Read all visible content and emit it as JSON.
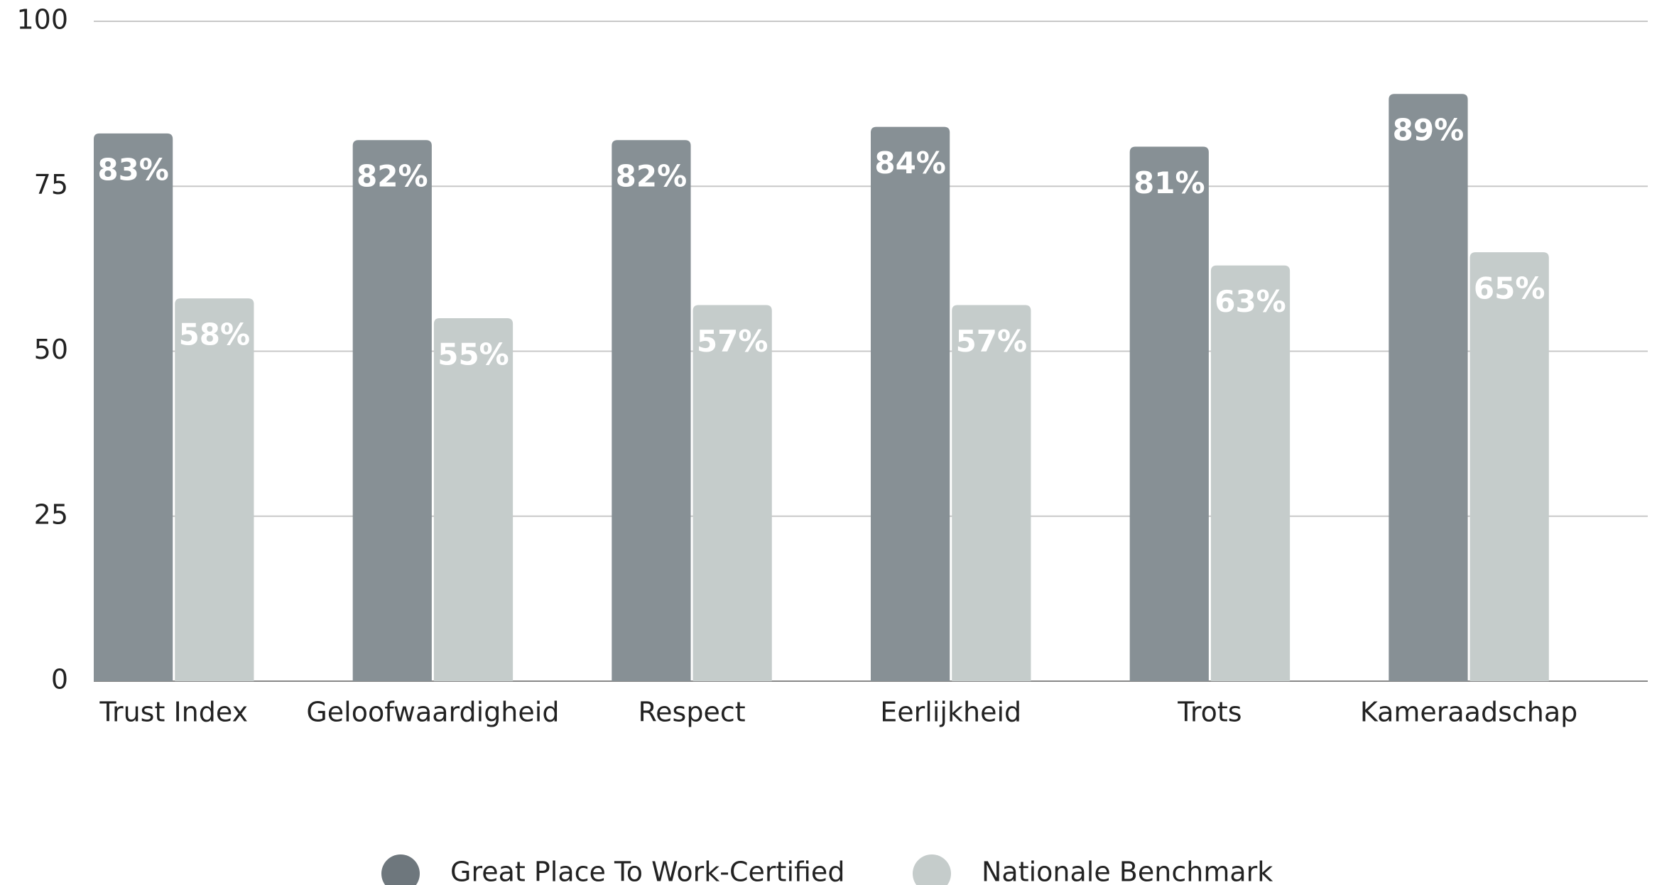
{
  "chart_data": {
    "type": "bar",
    "categories": [
      "Trust Index",
      "Geloofwaardigheid",
      "Respect",
      "Eerlijkheid",
      "Trots",
      "Kameraadschap"
    ],
    "series": [
      {
        "name": "Great Place To Work-Certified",
        "color": "#879095",
        "values": [
          83,
          82,
          82,
          84,
          81,
          89
        ],
        "value_labels": [
          "83%",
          "82%",
          "82%",
          "84%",
          "81%",
          "89%"
        ]
      },
      {
        "name": "Nationale Benchmark",
        "color": "#c5cccb",
        "values": [
          58,
          55,
          57,
          57,
          63,
          65
        ],
        "value_labels": [
          "58%",
          "55%",
          "57%",
          "57%",
          "63%",
          "65%"
        ]
      }
    ],
    "ylim": [
      0,
      100
    ],
    "yticks": [
      0,
      25,
      50,
      75,
      100
    ],
    "grid": true,
    "legend": "bottom"
  }
}
